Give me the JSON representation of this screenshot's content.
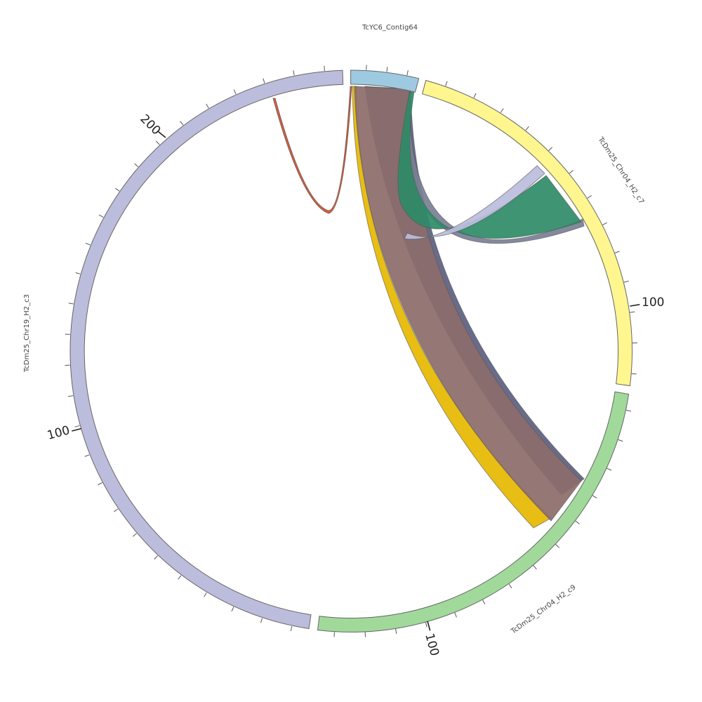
{
  "diagram": {
    "type": "circos",
    "segments": [
      {
        "id": "seg_contig64",
        "name": "TcYC6_Contig64",
        "color": "#9ecae1"
      },
      {
        "id": "seg_chr04_c7",
        "name": "TcDm25_Chr04_H2_c7",
        "color": "#fff68f"
      },
      {
        "id": "seg_chr04_c9",
        "name": "TcDm25_Chr04_H2_c9",
        "color": "#a1d99b"
      },
      {
        "id": "seg_chr19_c3",
        "name": "TcDm25_Chr19_H2_c3",
        "color": "#bcbddc"
      }
    ],
    "tick_labels": {
      "chr04_c7": "100",
      "chr04_c9": "100",
      "chr19_c3_a": "100",
      "chr19_c3_b": "200"
    },
    "links": [
      {
        "id": "link-contig64-c9-yellow",
        "color": "#e6b800"
      },
      {
        "id": "link-contig64-c9-brown",
        "color": "#8c6d6a"
      },
      {
        "id": "link-contig64-c9-navy",
        "color": "#5b6080"
      },
      {
        "id": "link-contig64-c7-green",
        "color": "#2e8b67"
      },
      {
        "id": "link-contig64-c7-lavender",
        "color": "#bcbddc"
      },
      {
        "id": "link-contig64-c7-gray",
        "color": "#7a8095"
      },
      {
        "id": "link-chr19-self-red",
        "color": "#d94f2b"
      }
    ]
  }
}
